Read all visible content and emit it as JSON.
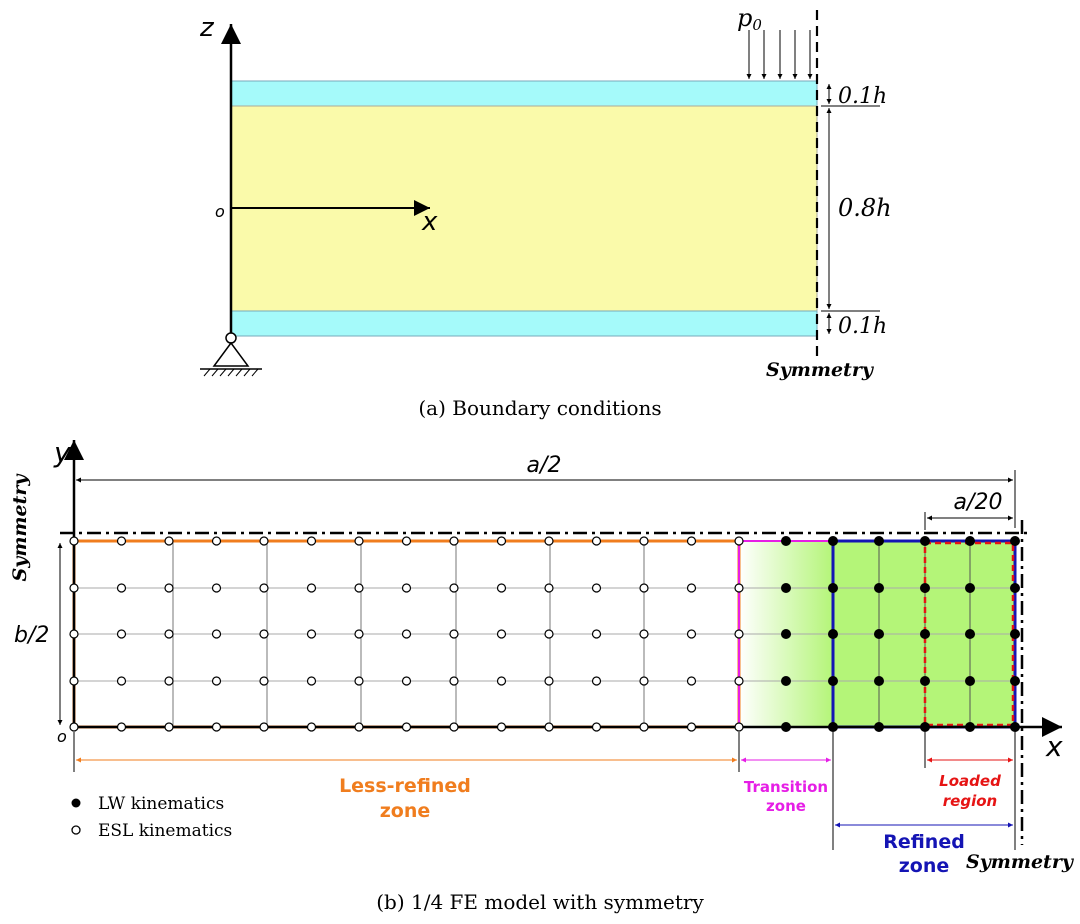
{
  "panel_a": {
    "caption": "(a) Boundary conditions",
    "z_label": "z",
    "x_label": "x",
    "origin_label": "o",
    "load_label": "p",
    "load_sub": "0",
    "dim_top": "0.1h",
    "dim_mid": "0.8h",
    "dim_bot": "0.1h",
    "symmetry_label": "Symmetry",
    "colors": {
      "face_sheet": "#a5fafa",
      "core": "#fafaaa"
    }
  },
  "panel_b": {
    "caption": "(b) 1/4 FE model with symmetry",
    "y_label": "y",
    "x_label": "x",
    "origin_label": "o",
    "dim_a2": "a/2",
    "dim_a20": "a/20",
    "dim_b2": "b/2",
    "symmetry_left": "Symmetry",
    "symmetry_bottom": "Symmetry",
    "zone_less_refined": [
      "Less-refined",
      "zone"
    ],
    "zone_transition": [
      "Transition",
      "zone"
    ],
    "zone_refined": [
      "Refined",
      "zone"
    ],
    "zone_loaded": [
      "Loaded",
      "region"
    ],
    "legend": {
      "lw": "LW kinematics",
      "esl": "ESL kinematics"
    },
    "colors": {
      "less_refined": "#f07d1e",
      "transition": "#e61ee6",
      "refined": "#1414b4",
      "loaded": "#e61414",
      "refined_fill": "#b4f578"
    }
  }
}
